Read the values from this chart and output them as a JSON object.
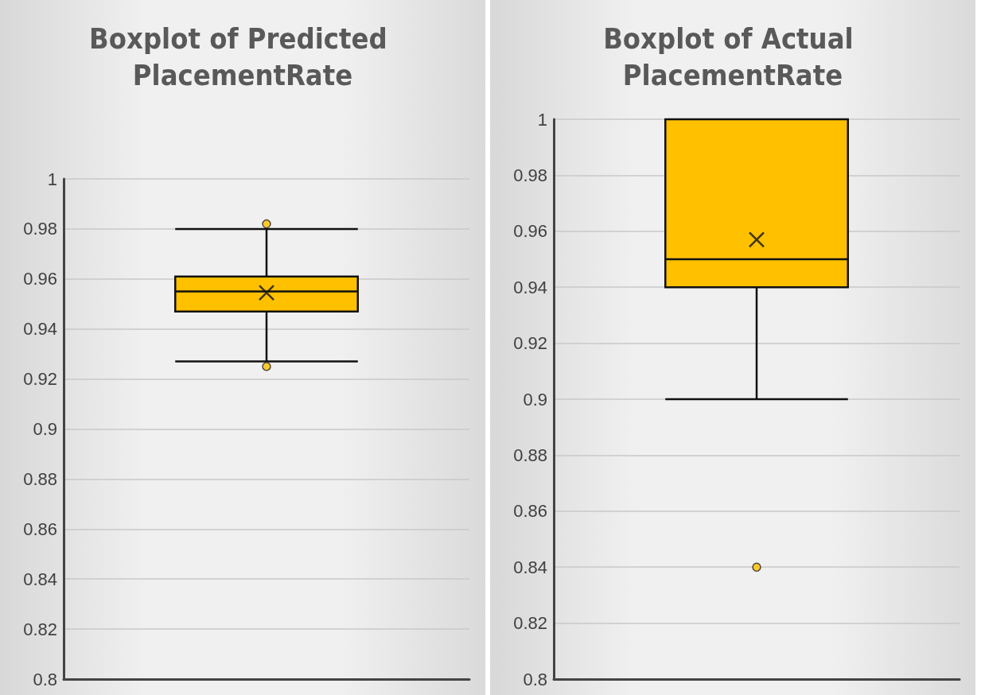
{
  "chart_data": [
    {
      "type": "box",
      "title": "Boxplot of Predicted PlacementRate",
      "categories": [
        null
      ],
      "series": [
        {
          "color": "#ffc000",
          "boxes": [
            {
              "low": 0.927,
              "q1": 0.947,
              "median": 0.955,
              "q3": 0.961,
              "high": 0.98,
              "mean": 0.9545,
              "outliers": [
                0.982,
                0.925
              ]
            }
          ]
        }
      ],
      "ylim": [
        0.8,
        1
      ],
      "yticks": [
        0.8,
        0.82,
        0.84,
        0.86,
        0.88,
        0.9,
        0.92,
        0.94,
        0.96,
        0.98,
        1
      ],
      "grid": "y",
      "tick_labels": "y"
    },
    {
      "type": "box",
      "title": "Boxplot of Actual PlacementRate",
      "categories": [
        null
      ],
      "series": [
        {
          "color": "#ffc000",
          "boxes": [
            {
              "low": 0.9,
              "q1": 0.94,
              "median": 0.95,
              "q3": 1,
              "high": 1,
              "mean": 0.957,
              "outliers": [
                0.84
              ]
            }
          ]
        }
      ],
      "ylim": [
        0.8,
        1
      ],
      "yticks": [
        0.8,
        0.82,
        0.84,
        0.86,
        0.88,
        0.9,
        0.92,
        0.94,
        0.96,
        0.98,
        1
      ],
      "grid": "y",
      "tick_labels": "y"
    }
  ]
}
